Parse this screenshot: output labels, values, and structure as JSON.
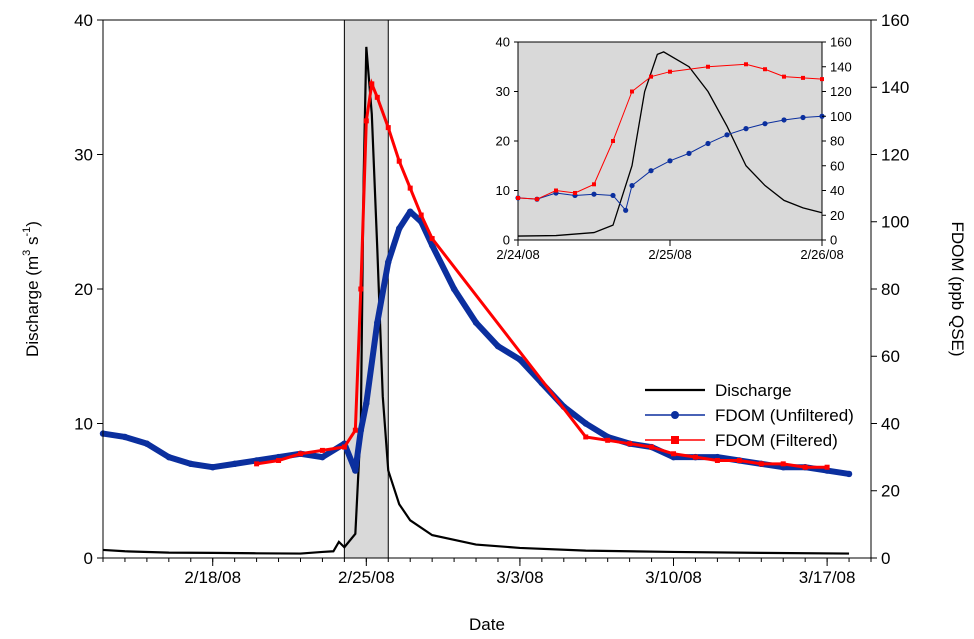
{
  "chart_data": [
    {
      "type": "line",
      "xlabel": "Date",
      "ylabel_left": "Discharge (m3 s-1)",
      "ylabel_left_parts": {
        "main": "Discharge (m",
        "exp1": "3",
        "mid": " s",
        "exp2": "-1",
        "end": ")"
      },
      "ylabel_right": "FDOM (ppb QSE)",
      "x_range": [
        "2/13/08",
        "3/19/08"
      ],
      "x_ticks": [
        "2/18/08",
        "2/25/08",
        "3/3/08",
        "3/10/08",
        "3/17/08"
      ],
      "ylim_left": [
        0,
        40
      ],
      "yticks_left": [
        "0",
        "10",
        "20",
        "30",
        "40"
      ],
      "ylim_right": [
        0,
        160
      ],
      "yticks_right": [
        "0",
        "20",
        "40",
        "60",
        "80",
        "100",
        "120",
        "140",
        "160"
      ],
      "shaded_region": [
        "2/24/08",
        "2/26/08"
      ],
      "legend": {
        "position": "center-right",
        "entries": [
          "Discharge",
          "FDOM (Unfiltered)",
          "FDOM (Filtered)"
        ]
      },
      "colors": {
        "discharge": "#000000",
        "unfiltered": "#0b2f9e",
        "filtered": "#ff0000",
        "shade": "#d9d9d9"
      },
      "series": [
        {
          "name": "Discharge",
          "axis": "left",
          "points": [
            [
              "2/13/08",
              0.6
            ],
            [
              "2/14/08",
              0.5
            ],
            [
              "2/16/08",
              0.4
            ],
            [
              "2/18/08",
              0.38
            ],
            [
              "2/20/08",
              0.35
            ],
            [
              "2/22/08",
              0.33
            ],
            [
              "2/23/08",
              0.45
            ],
            [
              "2/23/08 12:00",
              0.5
            ],
            [
              "2/23/08 18:00",
              1.2
            ],
            [
              "2/24/08",
              0.8
            ],
            [
              "2/24/08 12:00",
              1.8
            ],
            [
              "2/24/08 18:00",
              10.0
            ],
            [
              "2/24/08 21:00",
              28.0
            ],
            [
              "2/25/08",
              38.0
            ],
            [
              "2/25/08 06:00",
              33.0
            ],
            [
              "2/25/08 12:00",
              23.0
            ],
            [
              "2/25/08 18:00",
              12.0
            ],
            [
              "2/26/08",
              6.5
            ],
            [
              "2/26/08 12:00",
              4.0
            ],
            [
              "2/27/08",
              2.8
            ],
            [
              "2/28/08",
              1.7
            ],
            [
              "3/1/08",
              1.0
            ],
            [
              "3/3/08",
              0.75
            ],
            [
              "3/6/08",
              0.55
            ],
            [
              "3/10/08",
              0.45
            ],
            [
              "3/14/08",
              0.38
            ],
            [
              "3/18/08",
              0.33
            ]
          ]
        },
        {
          "name": "FDOM (Unfiltered)",
          "axis": "right",
          "points": [
            [
              "2/13/08",
              37
            ],
            [
              "2/14/08",
              36
            ],
            [
              "2/15/08",
              34
            ],
            [
              "2/16/08",
              30
            ],
            [
              "2/17/08",
              28
            ],
            [
              "2/18/08",
              27
            ],
            [
              "2/19/08",
              28
            ],
            [
              "2/20/08",
              29
            ],
            [
              "2/21/08",
              30
            ],
            [
              "2/22/08",
              31
            ],
            [
              "2/23/08",
              30
            ],
            [
              "2/24/08",
              34
            ],
            [
              "2/24/08 12:00",
              26
            ],
            [
              "2/24/08 18:00",
              38
            ],
            [
              "2/25/08",
              46
            ],
            [
              "2/25/08 12:00",
              70
            ],
            [
              "2/26/08",
              88
            ],
            [
              "2/26/08 12:00",
              98
            ],
            [
              "2/27/08",
              103
            ],
            [
              "2/27/08 12:00",
              100
            ],
            [
              "2/28/08",
              93
            ],
            [
              "2/29/08",
              80
            ],
            [
              "3/1/08",
              70
            ],
            [
              "3/2/08",
              63
            ],
            [
              "3/3/08",
              59
            ],
            [
              "3/4/08",
              52
            ],
            [
              "3/5/08",
              45
            ],
            [
              "3/6/08",
              40
            ],
            [
              "3/7/08",
              36
            ],
            [
              "3/8/08",
              34
            ],
            [
              "3/9/08",
              33
            ],
            [
              "3/10/08",
              30
            ],
            [
              "3/11/08",
              30
            ],
            [
              "3/12/08",
              30
            ],
            [
              "3/13/08",
              29
            ],
            [
              "3/14/08",
              28
            ],
            [
              "3/15/08",
              27
            ],
            [
              "3/16/08",
              27
            ],
            [
              "3/17/08",
              26
            ],
            [
              "3/18/08",
              25
            ]
          ]
        },
        {
          "name": "FDOM (Filtered)",
          "axis": "right",
          "points": [
            [
              "2/20/08",
              28
            ],
            [
              "2/21/08",
              29
            ],
            [
              "2/22/08",
              31
            ],
            [
              "2/23/08",
              32
            ],
            [
              "2/24/08",
              33
            ],
            [
              "2/24/08 12:00",
              38
            ],
            [
              "2/24/08 18:00",
              80
            ],
            [
              "2/25/08",
              130
            ],
            [
              "2/25/08 06:00",
              141
            ],
            [
              "2/25/08 12:00",
              137
            ],
            [
              "2/26/08",
              128
            ],
            [
              "2/26/08 12:00",
              118
            ],
            [
              "2/27/08",
              110
            ],
            [
              "2/27/08 12:00",
              102
            ],
            [
              "2/28/08",
              95
            ],
            [
              "3/6/08",
              36
            ],
            [
              "3/7/08",
              35
            ],
            [
              "3/8/08",
              34
            ],
            [
              "3/9/08",
              33
            ],
            [
              "3/10/08",
              31
            ],
            [
              "3/11/08",
              30
            ],
            [
              "3/12/08",
              29
            ],
            [
              "3/13/08",
              29
            ],
            [
              "3/14/08",
              28
            ],
            [
              "3/15/08",
              28
            ],
            [
              "3/16/08",
              27
            ],
            [
              "3/17/08",
              27
            ]
          ]
        }
      ]
    },
    {
      "type": "line",
      "panel": "inset",
      "x_range": [
        "2/24/08",
        "2/26/08"
      ],
      "x_ticks": [
        "2/24/08",
        "2/25/08",
        "2/26/08"
      ],
      "ylim_left": [
        0,
        40
      ],
      "yticks_left": [
        "0",
        "10",
        "20",
        "30",
        "40"
      ],
      "ylim_right": [
        0,
        160
      ],
      "yticks_right": [
        "0",
        "20",
        "40",
        "60",
        "80",
        "100",
        "120",
        "140",
        "160"
      ],
      "background": "#d9d9d9",
      "series": [
        {
          "name": "Discharge",
          "axis": "left",
          "points": [
            [
              "2/24/08",
              0.8
            ],
            [
              "2/24/08 06:00",
              0.9
            ],
            [
              "2/24/08 12:00",
              1.5
            ],
            [
              "2/24/08 15:00",
              3.0
            ],
            [
              "2/24/08 18:00",
              15.0
            ],
            [
              "2/24/08 20:00",
              30.0
            ],
            [
              "2/24/08 22:00",
              37.5
            ],
            [
              "2/24/08 23:00",
              38.0
            ],
            [
              "2/25/08 03:00",
              35.0
            ],
            [
              "2/25/08 06:00",
              30.0
            ],
            [
              "2/25/08 09:00",
              23.0
            ],
            [
              "2/25/08 12:00",
              15.0
            ],
            [
              "2/25/08 15:00",
              11.0
            ],
            [
              "2/25/08 18:00",
              8.0
            ],
            [
              "2/25/08 21:00",
              6.5
            ],
            [
              "2/26/08",
              5.5
            ]
          ]
        },
        {
          "name": "FDOM (Unfiltered)",
          "axis": "right",
          "points": [
            [
              "2/24/08",
              34
            ],
            [
              "2/24/08 03:00",
              33
            ],
            [
              "2/24/08 06:00",
              38
            ],
            [
              "2/24/08 09:00",
              36
            ],
            [
              "2/24/08 12:00",
              37
            ],
            [
              "2/24/08 15:00",
              36
            ],
            [
              "2/24/08 17:00",
              24
            ],
            [
              "2/24/08 18:00",
              44
            ],
            [
              "2/24/08 21:00",
              56
            ],
            [
              "2/25/08",
              64
            ],
            [
              "2/25/08 03:00",
              70
            ],
            [
              "2/25/08 06:00",
              78
            ],
            [
              "2/25/08 09:00",
              85
            ],
            [
              "2/25/08 12:00",
              90
            ],
            [
              "2/25/08 15:00",
              94
            ],
            [
              "2/25/08 18:00",
              97
            ],
            [
              "2/25/08 21:00",
              99
            ],
            [
              "2/26/08",
              100
            ]
          ]
        },
        {
          "name": "FDOM (Filtered)",
          "axis": "right",
          "points": [
            [
              "2/24/08",
              34
            ],
            [
              "2/24/08 03:00",
              33
            ],
            [
              "2/24/08 06:00",
              40
            ],
            [
              "2/24/08 09:00",
              38
            ],
            [
              "2/24/08 12:00",
              45
            ],
            [
              "2/24/08 15:00",
              80
            ],
            [
              "2/24/08 18:00",
              120
            ],
            [
              "2/24/08 21:00",
              132
            ],
            [
              "2/25/08",
              136
            ],
            [
              "2/25/08 06:00",
              140
            ],
            [
              "2/25/08 12:00",
              142
            ],
            [
              "2/25/08 15:00",
              138
            ],
            [
              "2/25/08 18:00",
              132
            ],
            [
              "2/25/08 21:00",
              131
            ],
            [
              "2/26/08",
              130
            ]
          ]
        }
      ]
    }
  ]
}
